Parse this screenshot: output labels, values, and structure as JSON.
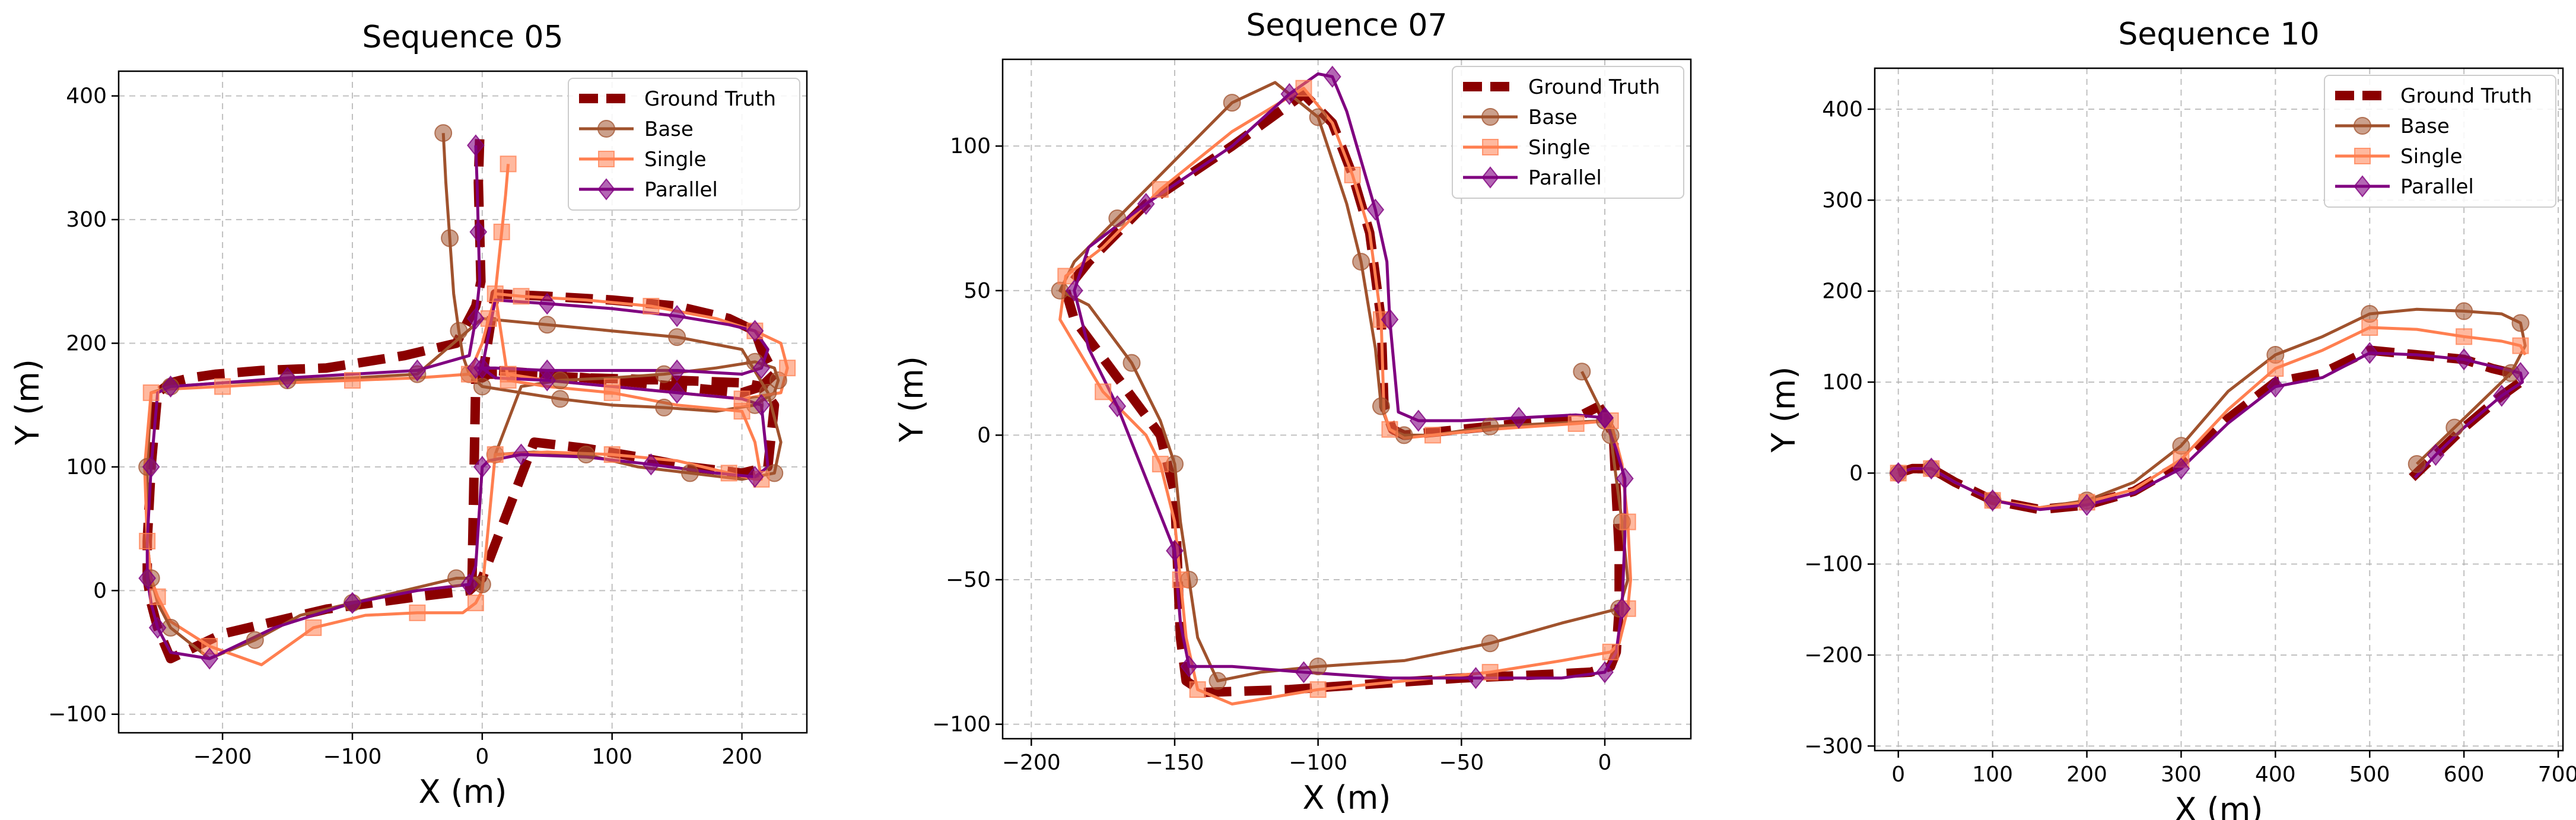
{
  "chart_data": [
    {
      "type": "line",
      "title": "Sequence 05",
      "xlabel": "X (m)",
      "ylabel": "Y (m)",
      "xlim": [
        -280,
        250
      ],
      "ylim": [
        -115,
        420
      ],
      "xticks": [
        -200,
        -100,
        0,
        100,
        200
      ],
      "yticks": [
        -100,
        0,
        100,
        200,
        300,
        400
      ],
      "grid": true,
      "legend": "top-right",
      "series": [
        {
          "name": "Ground Truth",
          "color": "#8b0000",
          "style": "dashed",
          "marker": "none",
          "x": [
            -2,
            -3,
            -2,
            -1,
            -5,
            -20,
            -60,
            -120,
            -170,
            -205,
            -225,
            -240,
            -250,
            -255,
            -258,
            -258,
            -255,
            -250,
            -240,
            -200,
            -120,
            -50,
            -10,
            0,
            40,
            80,
            120,
            160,
            200,
            220,
            225,
            215,
            200,
            150,
            100,
            50,
            10,
            0,
            10,
            50,
            100,
            150,
            190,
            210,
            215,
            220,
            225,
            215,
            200,
            150,
            80,
            20,
            5,
            0,
            -5,
            -8
          ],
          "y": [
            365,
            330,
            290,
            250,
            230,
            200,
            190,
            180,
            178,
            175,
            172,
            168,
            160,
            100,
            40,
            10,
            -10,
            -30,
            -55,
            -35,
            -15,
            -5,
            0,
            10,
            120,
            115,
            108,
            100,
            95,
            100,
            150,
            165,
            160,
            165,
            170,
            175,
            178,
            172,
            240,
            238,
            235,
            230,
            220,
            210,
            195,
            185,
            175,
            165,
            168,
            170,
            172,
            175,
            175,
            175,
            170,
            0
          ]
        },
        {
          "name": "Base",
          "color": "#a0522d",
          "style": "solid",
          "marker": "circle",
          "x": [
            -30,
            -28,
            -25,
            -22,
            -18,
            -15,
            -10,
            -5,
            0,
            30,
            60,
            100,
            140,
            180,
            210,
            225,
            228,
            225,
            210,
            180,
            140,
            100,
            60,
            30,
            10,
            40,
            80,
            120,
            160,
            200,
            225,
            230,
            220,
            200,
            150,
            100,
            50,
            0,
            -50,
            -100,
            -150,
            -200,
            -240,
            -255,
            -258,
            -258,
            -255,
            -250,
            -240,
            -210,
            -175,
            -140,
            -100,
            -60,
            -20,
            -5,
            0,
            -2
          ],
          "y": [
            370,
            330,
            285,
            240,
            210,
            190,
            175,
            170,
            165,
            160,
            155,
            150,
            148,
            145,
            150,
            160,
            170,
            180,
            185,
            180,
            175,
            172,
            170,
            165,
            110,
            112,
            110,
            100,
            95,
            90,
            95,
            120,
            160,
            195,
            205,
            210,
            215,
            220,
            175,
            172,
            170,
            168,
            165,
            160,
            100,
            40,
            10,
            -10,
            -30,
            -55,
            -40,
            -20,
            -10,
            0,
            10,
            10,
            5,
            0
          ]
        },
        {
          "name": "Single",
          "color": "#ff7f50",
          "style": "solid",
          "marker": "square",
          "x": [
            20,
            18,
            15,
            12,
            10,
            8,
            5,
            0,
            -10,
            -50,
            -100,
            -150,
            -200,
            -240,
            -255,
            -260,
            -258,
            -255,
            -250,
            -240,
            -210,
            -170,
            -130,
            -90,
            -50,
            -15,
            -5,
            0,
            10,
            50,
            100,
            150,
            190,
            210,
            215,
            210,
            200,
            150,
            100,
            50,
            20,
            10,
            30,
            80,
            130,
            180,
            210,
            230,
            235,
            230,
            200,
            150,
            100,
            50,
            20
          ],
          "y": [
            345,
            320,
            290,
            260,
            240,
            230,
            220,
            200,
            175,
            172,
            170,
            168,
            165,
            163,
            160,
            100,
            40,
            10,
            -5,
            -25,
            -45,
            -60,
            -30,
            -20,
            -18,
            -18,
            -10,
            0,
            110,
            112,
            110,
            105,
            95,
            90,
            90,
            120,
            145,
            150,
            160,
            165,
            170,
            240,
            238,
            235,
            230,
            220,
            210,
            200,
            180,
            160,
            155,
            160,
            165,
            170,
            175
          ]
        },
        {
          "name": "Parallel",
          "color": "#800080",
          "style": "solid",
          "marker": "diamond",
          "x": [
            -5,
            -4,
            -3,
            -2,
            -5,
            -10,
            -50,
            -100,
            -150,
            -200,
            -240,
            -250,
            -255,
            -258,
            -258,
            -255,
            -250,
            -240,
            -210,
            -160,
            -100,
            -50,
            -10,
            -5,
            0,
            5,
            30,
            80,
            130,
            180,
            210,
            220,
            215,
            200,
            150,
            100,
            50,
            10,
            0,
            10,
            50,
            100,
            150,
            190,
            210,
            220,
            215,
            200,
            150,
            100,
            50,
            10,
            -5
          ],
          "y": [
            360,
            330,
            290,
            250,
            220,
            190,
            178,
            175,
            172,
            168,
            165,
            160,
            100,
            40,
            10,
            -10,
            -30,
            -50,
            -55,
            -30,
            -10,
            0,
            5,
            20,
            100,
            105,
            110,
            108,
            102,
            95,
            92,
            100,
            150,
            155,
            160,
            165,
            170,
            172,
            180,
            235,
            232,
            228,
            222,
            215,
            210,
            195,
            180,
            175,
            178,
            178,
            178,
            180,
            180
          ]
        }
      ]
    },
    {
      "type": "line",
      "title": "Sequence 07",
      "xlabel": "X (m)",
      "ylabel": "Y (m)",
      "xlim": [
        -210,
        30
      ],
      "ylim": [
        -105,
        130
      ],
      "xticks": [
        -200,
        -150,
        -100,
        -50,
        0
      ],
      "yticks": [
        -100,
        -50,
        0,
        50,
        100
      ],
      "grid": true,
      "legend": "top-right",
      "series": [
        {
          "name": "Ground Truth",
          "color": "#8b0000",
          "style": "dashed",
          "marker": "none",
          "x": [
            -2,
            3,
            4,
            5,
            5,
            4,
            2,
            -5,
            -25,
            -50,
            -80,
            -110,
            -140,
            -146,
            -148,
            -149,
            -150,
            -155,
            -170,
            -185,
            -188,
            -180,
            -160,
            -130,
            -105,
            -95,
            -88,
            -82,
            -78,
            -77,
            -74,
            -70,
            -60,
            -40,
            -10,
            -2
          ],
          "y": [
            10,
            0,
            -20,
            -40,
            -60,
            -75,
            -80,
            -82,
            -83,
            -84,
            -86,
            -88,
            -89,
            -85,
            -70,
            -45,
            -20,
            0,
            20,
            40,
            50,
            60,
            80,
            100,
            118,
            108,
            90,
            70,
            40,
            10,
            2,
            0,
            1,
            3,
            6,
            10
          ]
        },
        {
          "name": "Base",
          "color": "#a0522d",
          "style": "solid",
          "marker": "circle",
          "x": [
            -8,
            -2,
            2,
            4,
            6,
            8,
            5,
            -15,
            -40,
            -70,
            -100,
            -120,
            -135,
            -142,
            -145,
            -148,
            -150,
            -155,
            -165,
            -180,
            -190,
            -185,
            -170,
            -150,
            -130,
            -115,
            -100,
            -90,
            -85,
            -80,
            -78,
            -75,
            -70,
            -60,
            -40,
            -20,
            0,
            3
          ],
          "y": [
            22,
            10,
            0,
            -15,
            -30,
            -50,
            -60,
            -65,
            -72,
            -78,
            -80,
            -82,
            -85,
            -70,
            -50,
            -30,
            -10,
            5,
            25,
            45,
            50,
            60,
            75,
            95,
            115,
            122,
            110,
            80,
            60,
            30,
            10,
            2,
            0,
            0,
            3,
            4,
            5,
            0
          ]
        },
        {
          "name": "Single",
          "color": "#ff7f50",
          "style": "solid",
          "marker": "square",
          "x": [
            2,
            6,
            8,
            9,
            8,
            5,
            2,
            -15,
            -40,
            -70,
            -100,
            -130,
            -142,
            -146,
            -148,
            -150,
            -155,
            -160,
            -175,
            -190,
            -188,
            -175,
            -155,
            -130,
            -105,
            -95,
            -88,
            -82,
            -78,
            -77,
            -75,
            -70,
            -60,
            -40,
            -10,
            2
          ],
          "y": [
            5,
            -10,
            -30,
            -50,
            -60,
            -72,
            -75,
            -78,
            -82,
            -85,
            -88,
            -93,
            -88,
            -70,
            -50,
            -30,
            -10,
            0,
            15,
            40,
            55,
            65,
            85,
            105,
            120,
            108,
            90,
            70,
            40,
            8,
            2,
            -1,
            0,
            2,
            4,
            5
          ]
        },
        {
          "name": "Parallel",
          "color": "#800080",
          "style": "solid",
          "marker": "diamond",
          "x": [
            0,
            4,
            7,
            7,
            6,
            4,
            0,
            -15,
            -45,
            -75,
            -105,
            -130,
            -145,
            -148,
            -150,
            -160,
            -170,
            -180,
            -185,
            -180,
            -160,
            -130,
            -110,
            -100,
            -95,
            -90,
            -80,
            -76,
            -75,
            -72,
            -65,
            -50,
            -30,
            -10,
            0
          ],
          "y": [
            6,
            -5,
            -15,
            -35,
            -60,
            -75,
            -82,
            -84,
            -84,
            -84,
            -82,
            -80,
            -80,
            -65,
            -40,
            -15,
            10,
            30,
            50,
            65,
            80,
            100,
            118,
            125,
            124,
            112,
            78,
            60,
            40,
            8,
            5,
            5,
            6,
            7,
            6
          ]
        }
      ]
    },
    {
      "type": "line",
      "title": "Sequence 10",
      "xlabel": "X (m)",
      "ylabel": "Y (m)",
      "xlim": [
        -25,
        705
      ],
      "ylim": [
        -305,
        445
      ],
      "xticks": [
        0,
        100,
        200,
        300,
        400,
        500,
        600,
        700
      ],
      "yticks": [
        -300,
        -200,
        -100,
        0,
        100,
        200,
        300,
        400
      ],
      "grid": true,
      "legend": "top-right",
      "series": [
        {
          "name": "Ground Truth",
          "color": "#8b0000",
          "style": "dashed",
          "marker": "none",
          "x": [
            0,
            15,
            35,
            60,
            100,
            150,
            200,
            250,
            300,
            350,
            400,
            450,
            500,
            550,
            600,
            630,
            650,
            660,
            640,
            600,
            570,
            545
          ],
          "y": [
            0,
            5,
            5,
            -10,
            -30,
            -40,
            -35,
            -20,
            10,
            60,
            100,
            110,
            135,
            130,
            125,
            115,
            110,
            100,
            85,
            50,
            20,
            -5
          ]
        },
        {
          "name": "Base",
          "color": "#a0522d",
          "style": "solid",
          "marker": "circle",
          "x": [
            0,
            15,
            35,
            60,
            100,
            150,
            200,
            250,
            300,
            350,
            400,
            450,
            500,
            550,
            600,
            640,
            660,
            665,
            650,
            620,
            590,
            570,
            550
          ],
          "y": [
            0,
            5,
            5,
            -10,
            -30,
            -38,
            -30,
            -10,
            30,
            90,
            130,
            150,
            175,
            180,
            178,
            175,
            165,
            140,
            110,
            80,
            50,
            30,
            10
          ]
        },
        {
          "name": "Single",
          "color": "#ff7f50",
          "style": "solid",
          "marker": "square",
          "x": [
            0,
            15,
            35,
            60,
            100,
            150,
            200,
            250,
            300,
            350,
            400,
            450,
            500,
            550,
            600,
            640,
            660,
            665
          ],
          "y": [
            0,
            5,
            5,
            -10,
            -30,
            -38,
            -32,
            -18,
            15,
            70,
            115,
            135,
            160,
            158,
            150,
            145,
            140,
            130
          ]
        },
        {
          "name": "Parallel",
          "color": "#800080",
          "style": "solid",
          "marker": "diamond",
          "x": [
            0,
            15,
            35,
            60,
            100,
            150,
            200,
            250,
            300,
            350,
            400,
            450,
            500,
            550,
            600,
            640,
            660,
            662,
            640,
            600,
            570,
            548
          ],
          "y": [
            0,
            5,
            5,
            -10,
            -30,
            -40,
            -35,
            -22,
            5,
            55,
            95,
            105,
            132,
            130,
            125,
            115,
            110,
            100,
            85,
            50,
            20,
            -5
          ]
        }
      ]
    }
  ]
}
